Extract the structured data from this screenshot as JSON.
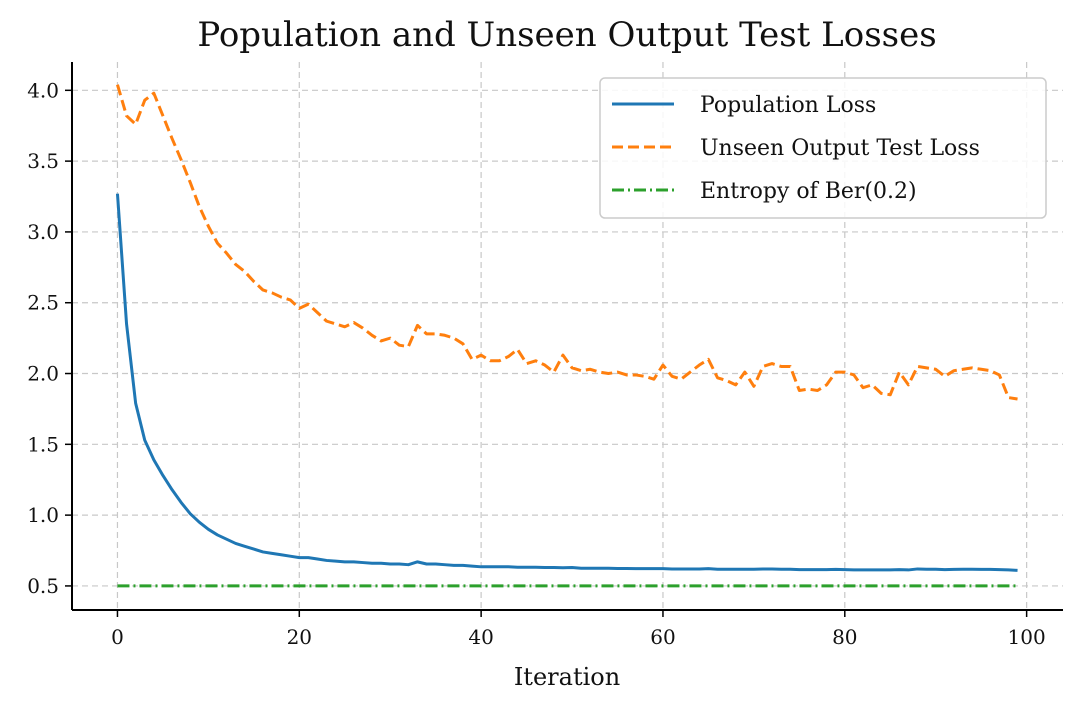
{
  "chart_data": {
    "type": "line",
    "title": "Population and Unseen Output Test Losses",
    "xlabel": "Iteration",
    "ylabel": "",
    "xlim": [
      -5,
      104
    ],
    "ylim": [
      0.33,
      4.2
    ],
    "xticks": [
      0,
      20,
      40,
      60,
      80,
      100
    ],
    "xtick_labels": [
      "0",
      "20",
      "40",
      "60",
      "80",
      "100"
    ],
    "yticks": [
      0.5,
      1.0,
      1.5,
      2.0,
      2.5,
      3.0,
      3.5,
      4.0
    ],
    "ytick_labels": [
      "0.5",
      "1.0",
      "1.5",
      "2.0",
      "2.5",
      "3.0",
      "3.5",
      "4.0"
    ],
    "grid": true,
    "legend_position": "top-right",
    "x": [
      0,
      1,
      2,
      3,
      4,
      5,
      6,
      7,
      8,
      9,
      10,
      11,
      12,
      13,
      14,
      15,
      16,
      17,
      18,
      19,
      20,
      21,
      22,
      23,
      24,
      25,
      26,
      27,
      28,
      29,
      30,
      31,
      32,
      33,
      34,
      35,
      36,
      37,
      38,
      39,
      40,
      41,
      42,
      43,
      44,
      45,
      46,
      47,
      48,
      49,
      50,
      51,
      52,
      53,
      54,
      55,
      56,
      57,
      58,
      59,
      60,
      61,
      62,
      63,
      64,
      65,
      66,
      67,
      68,
      69,
      70,
      71,
      72,
      73,
      74,
      75,
      76,
      77,
      78,
      79,
      80,
      81,
      82,
      83,
      84,
      85,
      86,
      87,
      88,
      89,
      90,
      91,
      92,
      93,
      94,
      95,
      96,
      97,
      98,
      99
    ],
    "series": [
      {
        "name": "Population Loss",
        "color": "#1f77b4",
        "style": "solid",
        "values": [
          3.27,
          2.35,
          1.79,
          1.53,
          1.39,
          1.28,
          1.18,
          1.09,
          1.01,
          0.95,
          0.9,
          0.86,
          0.83,
          0.8,
          0.78,
          0.76,
          0.74,
          0.73,
          0.72,
          0.71,
          0.7,
          0.7,
          0.69,
          0.68,
          0.675,
          0.67,
          0.67,
          0.665,
          0.66,
          0.66,
          0.655,
          0.655,
          0.65,
          0.67,
          0.655,
          0.655,
          0.65,
          0.645,
          0.645,
          0.64,
          0.635,
          0.635,
          0.635,
          0.635,
          0.632,
          0.632,
          0.632,
          0.63,
          0.63,
          0.628,
          0.63,
          0.625,
          0.625,
          0.625,
          0.625,
          0.623,
          0.623,
          0.622,
          0.622,
          0.622,
          0.622,
          0.62,
          0.62,
          0.62,
          0.62,
          0.622,
          0.618,
          0.618,
          0.618,
          0.618,
          0.618,
          0.62,
          0.62,
          0.618,
          0.618,
          0.615,
          0.615,
          0.615,
          0.615,
          0.617,
          0.615,
          0.613,
          0.613,
          0.613,
          0.613,
          0.613,
          0.615,
          0.613,
          0.62,
          0.618,
          0.618,
          0.615,
          0.617,
          0.618,
          0.618,
          0.617,
          0.617,
          0.615,
          0.613,
          0.61
        ]
      },
      {
        "name": "Unseen Output Test Loss",
        "color": "#ff7f0e",
        "style": "dashed",
        "values": [
          4.04,
          3.82,
          3.76,
          3.93,
          3.98,
          3.82,
          3.66,
          3.51,
          3.35,
          3.18,
          3.04,
          2.92,
          2.85,
          2.77,
          2.72,
          2.65,
          2.59,
          2.57,
          2.54,
          2.52,
          2.46,
          2.49,
          2.43,
          2.37,
          2.35,
          2.33,
          2.36,
          2.32,
          2.27,
          2.23,
          2.25,
          2.2,
          2.19,
          2.34,
          2.28,
          2.28,
          2.27,
          2.25,
          2.21,
          2.1,
          2.13,
          2.09,
          2.09,
          2.12,
          2.17,
          2.07,
          2.09,
          2.06,
          2.01,
          2.13,
          2.04,
          2.02,
          2.03,
          2.01,
          2.0,
          2.01,
          1.99,
          1.99,
          1.98,
          1.96,
          2.06,
          1.98,
          1.96,
          2.01,
          2.06,
          2.1,
          1.97,
          1.95,
          1.92,
          2.01,
          1.91,
          2.05,
          2.07,
          2.05,
          2.05,
          1.88,
          1.89,
          1.88,
          1.92,
          2.01,
          2.01,
          1.99,
          1.9,
          1.92,
          1.86,
          1.85,
          2.01,
          1.92,
          2.05,
          2.04,
          2.03,
          1.98,
          2.02,
          2.03,
          2.04,
          2.03,
          2.02,
          1.99,
          1.83,
          1.82
        ]
      },
      {
        "name": "Entropy of Ber(0.2)",
        "color": "#2ca02c",
        "style": "dashdot",
        "values": [
          0.5004,
          0.5004,
          0.5004,
          0.5004,
          0.5004,
          0.5004,
          0.5004,
          0.5004,
          0.5004,
          0.5004,
          0.5004,
          0.5004,
          0.5004,
          0.5004,
          0.5004,
          0.5004,
          0.5004,
          0.5004,
          0.5004,
          0.5004,
          0.5004,
          0.5004,
          0.5004,
          0.5004,
          0.5004,
          0.5004,
          0.5004,
          0.5004,
          0.5004,
          0.5004,
          0.5004,
          0.5004,
          0.5004,
          0.5004,
          0.5004,
          0.5004,
          0.5004,
          0.5004,
          0.5004,
          0.5004,
          0.5004,
          0.5004,
          0.5004,
          0.5004,
          0.5004,
          0.5004,
          0.5004,
          0.5004,
          0.5004,
          0.5004,
          0.5004,
          0.5004,
          0.5004,
          0.5004,
          0.5004,
          0.5004,
          0.5004,
          0.5004,
          0.5004,
          0.5004,
          0.5004,
          0.5004,
          0.5004,
          0.5004,
          0.5004,
          0.5004,
          0.5004,
          0.5004,
          0.5004,
          0.5004,
          0.5004,
          0.5004,
          0.5004,
          0.5004,
          0.5004,
          0.5004,
          0.5004,
          0.5004,
          0.5004,
          0.5004,
          0.5004,
          0.5004,
          0.5004,
          0.5004,
          0.5004,
          0.5004,
          0.5004,
          0.5004,
          0.5004,
          0.5004,
          0.5004,
          0.5004,
          0.5004,
          0.5004,
          0.5004,
          0.5004,
          0.5004,
          0.5004,
          0.5004,
          0.5004
        ]
      }
    ]
  }
}
